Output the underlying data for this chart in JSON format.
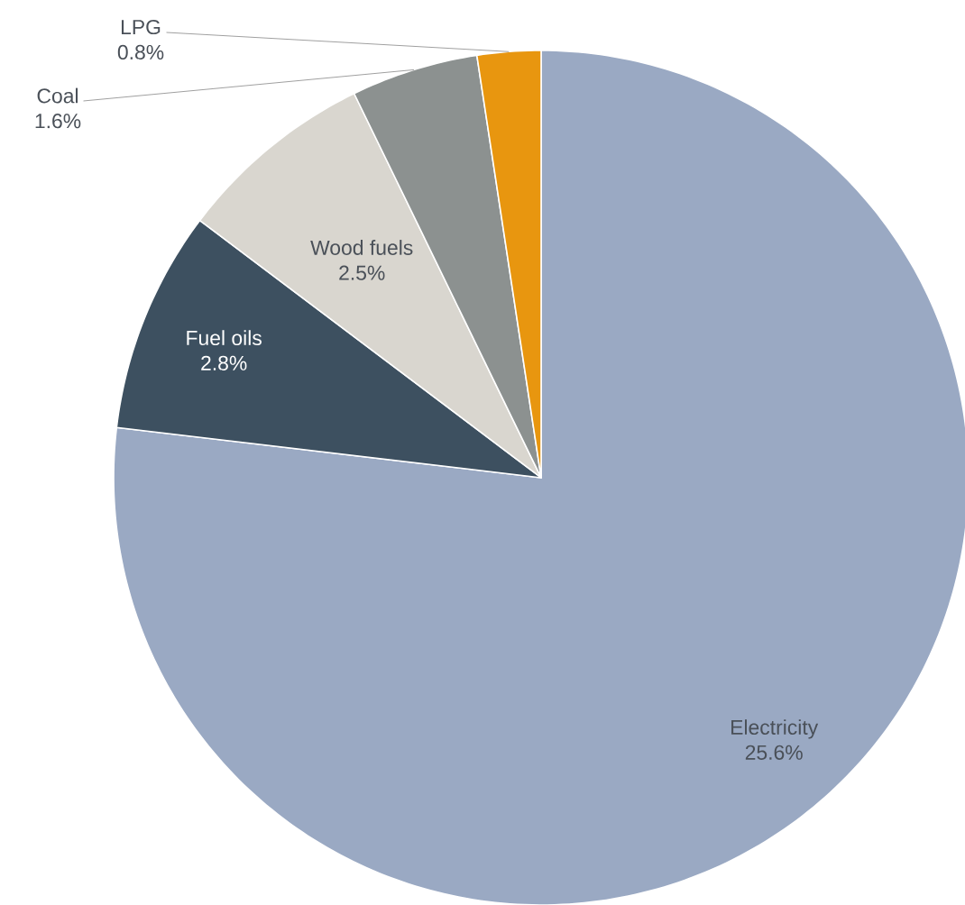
{
  "chart_data": {
    "type": "pie",
    "categories": [
      "Electricity",
      "Fuel oils",
      "Wood fuels",
      "Coal",
      "LPG"
    ],
    "values": [
      25.6,
      2.8,
      2.5,
      1.6,
      0.8
    ],
    "value_labels": [
      "25.6%",
      "2.8%",
      "2.5%",
      "1.6%",
      "0.8%"
    ],
    "colors": [
      "#9aa9c3",
      "#3d5060",
      "#d9d6cf",
      "#8c9190",
      "#e8960f"
    ]
  }
}
